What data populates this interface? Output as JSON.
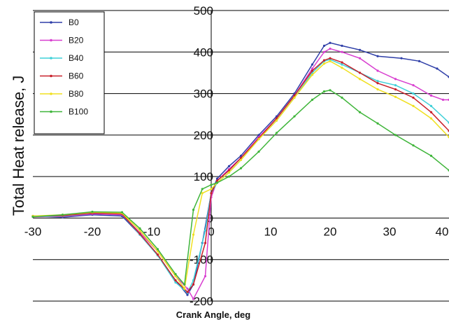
{
  "chart_data": {
    "type": "line",
    "title": "",
    "xlabel": "Crank Angle, deg",
    "ylabel": "Total Heat release, J",
    "xlim": [
      -30,
      40
    ],
    "ylim": [
      -200,
      500
    ],
    "x_ticks": [
      "-30",
      "-20",
      "-10",
      "0",
      "10",
      "20",
      "30",
      "40"
    ],
    "y_ticks": [
      "500",
      "400",
      "300",
      "200",
      "100",
      "0",
      "-100",
      "-200"
    ],
    "grid": "horizontal",
    "legend_position": "top-left",
    "series": [
      {
        "name": "B0",
        "color": "#2f3fa8",
        "points": [
          [
            -30,
            5
          ],
          [
            -25,
            2
          ],
          [
            -20,
            8
          ],
          [
            -15,
            5
          ],
          [
            -12,
            -40
          ],
          [
            -9,
            -90
          ],
          [
            -6,
            -150
          ],
          [
            -4,
            -185
          ],
          [
            -3,
            -160
          ],
          [
            -1.5,
            -60
          ],
          [
            0,
            60
          ],
          [
            1,
            95
          ],
          [
            3,
            125
          ],
          [
            5,
            150
          ],
          [
            8,
            200
          ],
          [
            11,
            245
          ],
          [
            14,
            300
          ],
          [
            17,
            370
          ],
          [
            19,
            415
          ],
          [
            20,
            422
          ],
          [
            22,
            415
          ],
          [
            25,
            405
          ],
          [
            28,
            390
          ],
          [
            32,
            385
          ],
          [
            35,
            378
          ],
          [
            38,
            360
          ],
          [
            40,
            340
          ]
        ]
      },
      {
        "name": "B20",
        "color": "#d83fd0",
        "points": [
          [
            -30,
            3
          ],
          [
            -25,
            4
          ],
          [
            -20,
            10
          ],
          [
            -15,
            8
          ],
          [
            -12,
            -35
          ],
          [
            -9,
            -80
          ],
          [
            -6,
            -140
          ],
          [
            -4,
            -170
          ],
          [
            -3,
            -195
          ],
          [
            -1,
            -140
          ],
          [
            0,
            50
          ],
          [
            1,
            90
          ],
          [
            3,
            118
          ],
          [
            5,
            145
          ],
          [
            8,
            195
          ],
          [
            11,
            240
          ],
          [
            14,
            295
          ],
          [
            17,
            360
          ],
          [
            19,
            400
          ],
          [
            20,
            408
          ],
          [
            22,
            400
          ],
          [
            25,
            385
          ],
          [
            28,
            355
          ],
          [
            31,
            335
          ],
          [
            34,
            320
          ],
          [
            37,
            295
          ],
          [
            39,
            285
          ],
          [
            40,
            285
          ]
        ]
      },
      {
        "name": "B40",
        "color": "#3fd0d8",
        "points": [
          [
            -30,
            4
          ],
          [
            -25,
            5
          ],
          [
            -20,
            12
          ],
          [
            -15,
            10
          ],
          [
            -12,
            -40
          ],
          [
            -9,
            -90
          ],
          [
            -6,
            -155
          ],
          [
            -4,
            -180
          ],
          [
            -3,
            -150
          ],
          [
            -1,
            -30
          ],
          [
            0,
            60
          ],
          [
            1,
            85
          ],
          [
            3,
            110
          ],
          [
            5,
            140
          ],
          [
            8,
            190
          ],
          [
            11,
            235
          ],
          [
            14,
            290
          ],
          [
            17,
            350
          ],
          [
            19,
            378
          ],
          [
            20,
            382
          ],
          [
            22,
            370
          ],
          [
            25,
            350
          ],
          [
            28,
            330
          ],
          [
            31,
            320
          ],
          [
            34,
            300
          ],
          [
            37,
            270
          ],
          [
            40,
            230
          ]
        ]
      },
      {
        "name": "B60",
        "color": "#c8202a",
        "points": [
          [
            -30,
            5
          ],
          [
            -25,
            6
          ],
          [
            -20,
            12
          ],
          [
            -15,
            10
          ],
          [
            -12,
            -38
          ],
          [
            -9,
            -88
          ],
          [
            -6,
            -150
          ],
          [
            -4,
            -178
          ],
          [
            -3,
            -160
          ],
          [
            -1,
            -60
          ],
          [
            0,
            60
          ],
          [
            1,
            90
          ],
          [
            3,
            115
          ],
          [
            5,
            145
          ],
          [
            8,
            192
          ],
          [
            11,
            240
          ],
          [
            14,
            295
          ],
          [
            17,
            355
          ],
          [
            19,
            380
          ],
          [
            20,
            385
          ],
          [
            22,
            375
          ],
          [
            25,
            350
          ],
          [
            28,
            325
          ],
          [
            31,
            310
          ],
          [
            34,
            290
          ],
          [
            37,
            255
          ],
          [
            40,
            210
          ]
        ]
      },
      {
        "name": "B80",
        "color": "#f0e020",
        "points": [
          [
            -30,
            5
          ],
          [
            -25,
            8
          ],
          [
            -20,
            14
          ],
          [
            -15,
            12
          ],
          [
            -12,
            -30
          ],
          [
            -9,
            -80
          ],
          [
            -6,
            -140
          ],
          [
            -4.5,
            -170
          ],
          [
            -3,
            -40
          ],
          [
            -1.5,
            60
          ],
          [
            0,
            70
          ],
          [
            1,
            85
          ],
          [
            3,
            110
          ],
          [
            5,
            140
          ],
          [
            8,
            190
          ],
          [
            11,
            235
          ],
          [
            14,
            290
          ],
          [
            17,
            345
          ],
          [
            19,
            372
          ],
          [
            20,
            378
          ],
          [
            22,
            362
          ],
          [
            25,
            335
          ],
          [
            28,
            310
          ],
          [
            31,
            292
          ],
          [
            34,
            270
          ],
          [
            37,
            240
          ],
          [
            40,
            195
          ]
        ]
      },
      {
        "name": "B100",
        "color": "#3fb53a",
        "points": [
          [
            -30,
            3
          ],
          [
            -25,
            8
          ],
          [
            -20,
            15
          ],
          [
            -15,
            14
          ],
          [
            -12,
            -25
          ],
          [
            -9,
            -75
          ],
          [
            -6,
            -135
          ],
          [
            -4.5,
            -160
          ],
          [
            -3,
            20
          ],
          [
            -1.5,
            70
          ],
          [
            0,
            80
          ],
          [
            1,
            85
          ],
          [
            3,
            100
          ],
          [
            5,
            120
          ],
          [
            8,
            160
          ],
          [
            11,
            205
          ],
          [
            14,
            245
          ],
          [
            17,
            285
          ],
          [
            19,
            305
          ],
          [
            20,
            308
          ],
          [
            22,
            290
          ],
          [
            25,
            255
          ],
          [
            28,
            228
          ],
          [
            31,
            200
          ],
          [
            34,
            175
          ],
          [
            37,
            150
          ],
          [
            40,
            115
          ]
        ]
      }
    ]
  }
}
